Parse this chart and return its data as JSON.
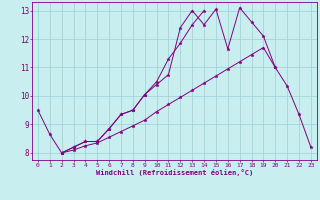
{
  "xlabel": "Windchill (Refroidissement éolien,°C)",
  "x": [
    0,
    1,
    2,
    3,
    4,
    5,
    6,
    7,
    8,
    9,
    10,
    11,
    12,
    13,
    14,
    15,
    16,
    17,
    18,
    19,
    20,
    21,
    22,
    23
  ],
  "line1": [
    9.5,
    8.65,
    8.0,
    8.2,
    8.4,
    8.4,
    8.85,
    9.35,
    9.5,
    10.05,
    10.4,
    10.75,
    12.4,
    13.0,
    12.5,
    13.05,
    11.65,
    13.1,
    12.6,
    12.1,
    11.0,
    10.35,
    9.35,
    8.2
  ],
  "line2_x": [
    2,
    3,
    4,
    5,
    6,
    7,
    8,
    9,
    10,
    11,
    12,
    13,
    14
  ],
  "line2_y": [
    8.0,
    8.2,
    8.4,
    8.4,
    8.85,
    9.35,
    9.5,
    10.05,
    10.5,
    11.3,
    11.85,
    12.5,
    13.0
  ],
  "line3_x": [
    2,
    3,
    4,
    5,
    6,
    7,
    8,
    9,
    10,
    11,
    12,
    13,
    14,
    15,
    16,
    17,
    18,
    19,
    20
  ],
  "line3_y": [
    8.0,
    8.1,
    8.25,
    8.35,
    8.55,
    8.75,
    8.95,
    9.15,
    9.45,
    9.7,
    9.95,
    10.2,
    10.45,
    10.7,
    10.95,
    11.2,
    11.45,
    11.7,
    11.0
  ],
  "line_color": "#800080",
  "bg_color": "#c8eef0",
  "grid_color": "#9ecdd4",
  "ylim": [
    7.75,
    13.3
  ],
  "xlim": [
    -0.5,
    23.5
  ],
  "yticks": [
    8,
    9,
    10,
    11,
    12,
    13
  ],
  "xticks": [
    0,
    1,
    2,
    3,
    4,
    5,
    6,
    7,
    8,
    9,
    10,
    11,
    12,
    13,
    14,
    15,
    16,
    17,
    18,
    19,
    20,
    21,
    22,
    23
  ]
}
